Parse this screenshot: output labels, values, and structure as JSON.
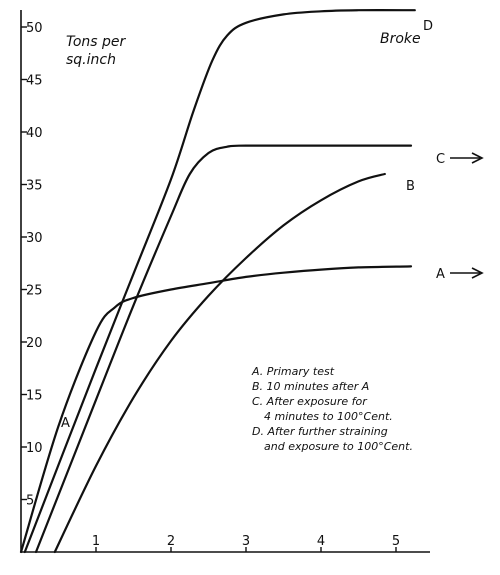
{
  "chart_data": {
    "type": "line",
    "ylabel": "Tons per sq.inch",
    "xlim": [
      0,
      5.3
    ],
    "ylim": [
      0,
      52
    ],
    "x_ticks": [
      1,
      2,
      3,
      4,
      5
    ],
    "y_ticks": [
      5,
      10,
      15,
      20,
      25,
      30,
      35,
      40,
      45,
      50
    ],
    "grid": false,
    "legend_position": "right-center",
    "annotation": "Broke",
    "series": [
      {
        "name": "A",
        "end_arrow": true,
        "legend": "A. Primary test",
        "points": [
          [
            0,
            0
          ],
          [
            0.5,
            12
          ],
          [
            1.0,
            21
          ],
          [
            1.25,
            23.3
          ],
          [
            1.5,
            24.2
          ],
          [
            2.0,
            25.0
          ],
          [
            2.5,
            25.6
          ],
          [
            3.0,
            26.2
          ],
          [
            3.5,
            26.6
          ],
          [
            4.0,
            26.9
          ],
          [
            4.5,
            27.1
          ],
          [
            5.2,
            27.2
          ]
        ]
      },
      {
        "name": "B",
        "end_arrow": false,
        "legend": "B. 10 minutes after A",
        "points": [
          [
            0.45,
            0
          ],
          [
            1.0,
            8.2
          ],
          [
            1.5,
            14.7
          ],
          [
            2.0,
            20.1
          ],
          [
            2.5,
            24.4
          ],
          [
            3.0,
            28.0
          ],
          [
            3.5,
            31.1
          ],
          [
            4.0,
            33.5
          ],
          [
            4.5,
            35.3
          ],
          [
            4.85,
            36.0
          ]
        ]
      },
      {
        "name": "C",
        "end_arrow": true,
        "legend": "C. After exposure for 4 minutes to 100°Cent.",
        "points": [
          [
            0.2,
            0
          ],
          [
            1.0,
            14.5
          ],
          [
            1.5,
            23.5
          ],
          [
            2.0,
            32.0
          ],
          [
            2.25,
            36.0
          ],
          [
            2.5,
            38.0
          ],
          [
            2.75,
            38.6
          ],
          [
            3.0,
            38.7
          ],
          [
            4.0,
            38.7
          ],
          [
            5.2,
            38.7
          ]
        ]
      },
      {
        "name": "D",
        "end_arrow": false,
        "legend": "D. After further straining and exposure to 100°Cent.",
        "points": [
          [
            0.05,
            0
          ],
          [
            1.0,
            17.5
          ],
          [
            1.5,
            26.5
          ],
          [
            2.0,
            35.5
          ],
          [
            2.3,
            42.0
          ],
          [
            2.55,
            46.8
          ],
          [
            2.75,
            49.2
          ],
          [
            3.0,
            50.4
          ],
          [
            3.5,
            51.2
          ],
          [
            4.0,
            51.5
          ],
          [
            4.5,
            51.6
          ],
          [
            5.25,
            51.6
          ]
        ]
      }
    ]
  }
}
